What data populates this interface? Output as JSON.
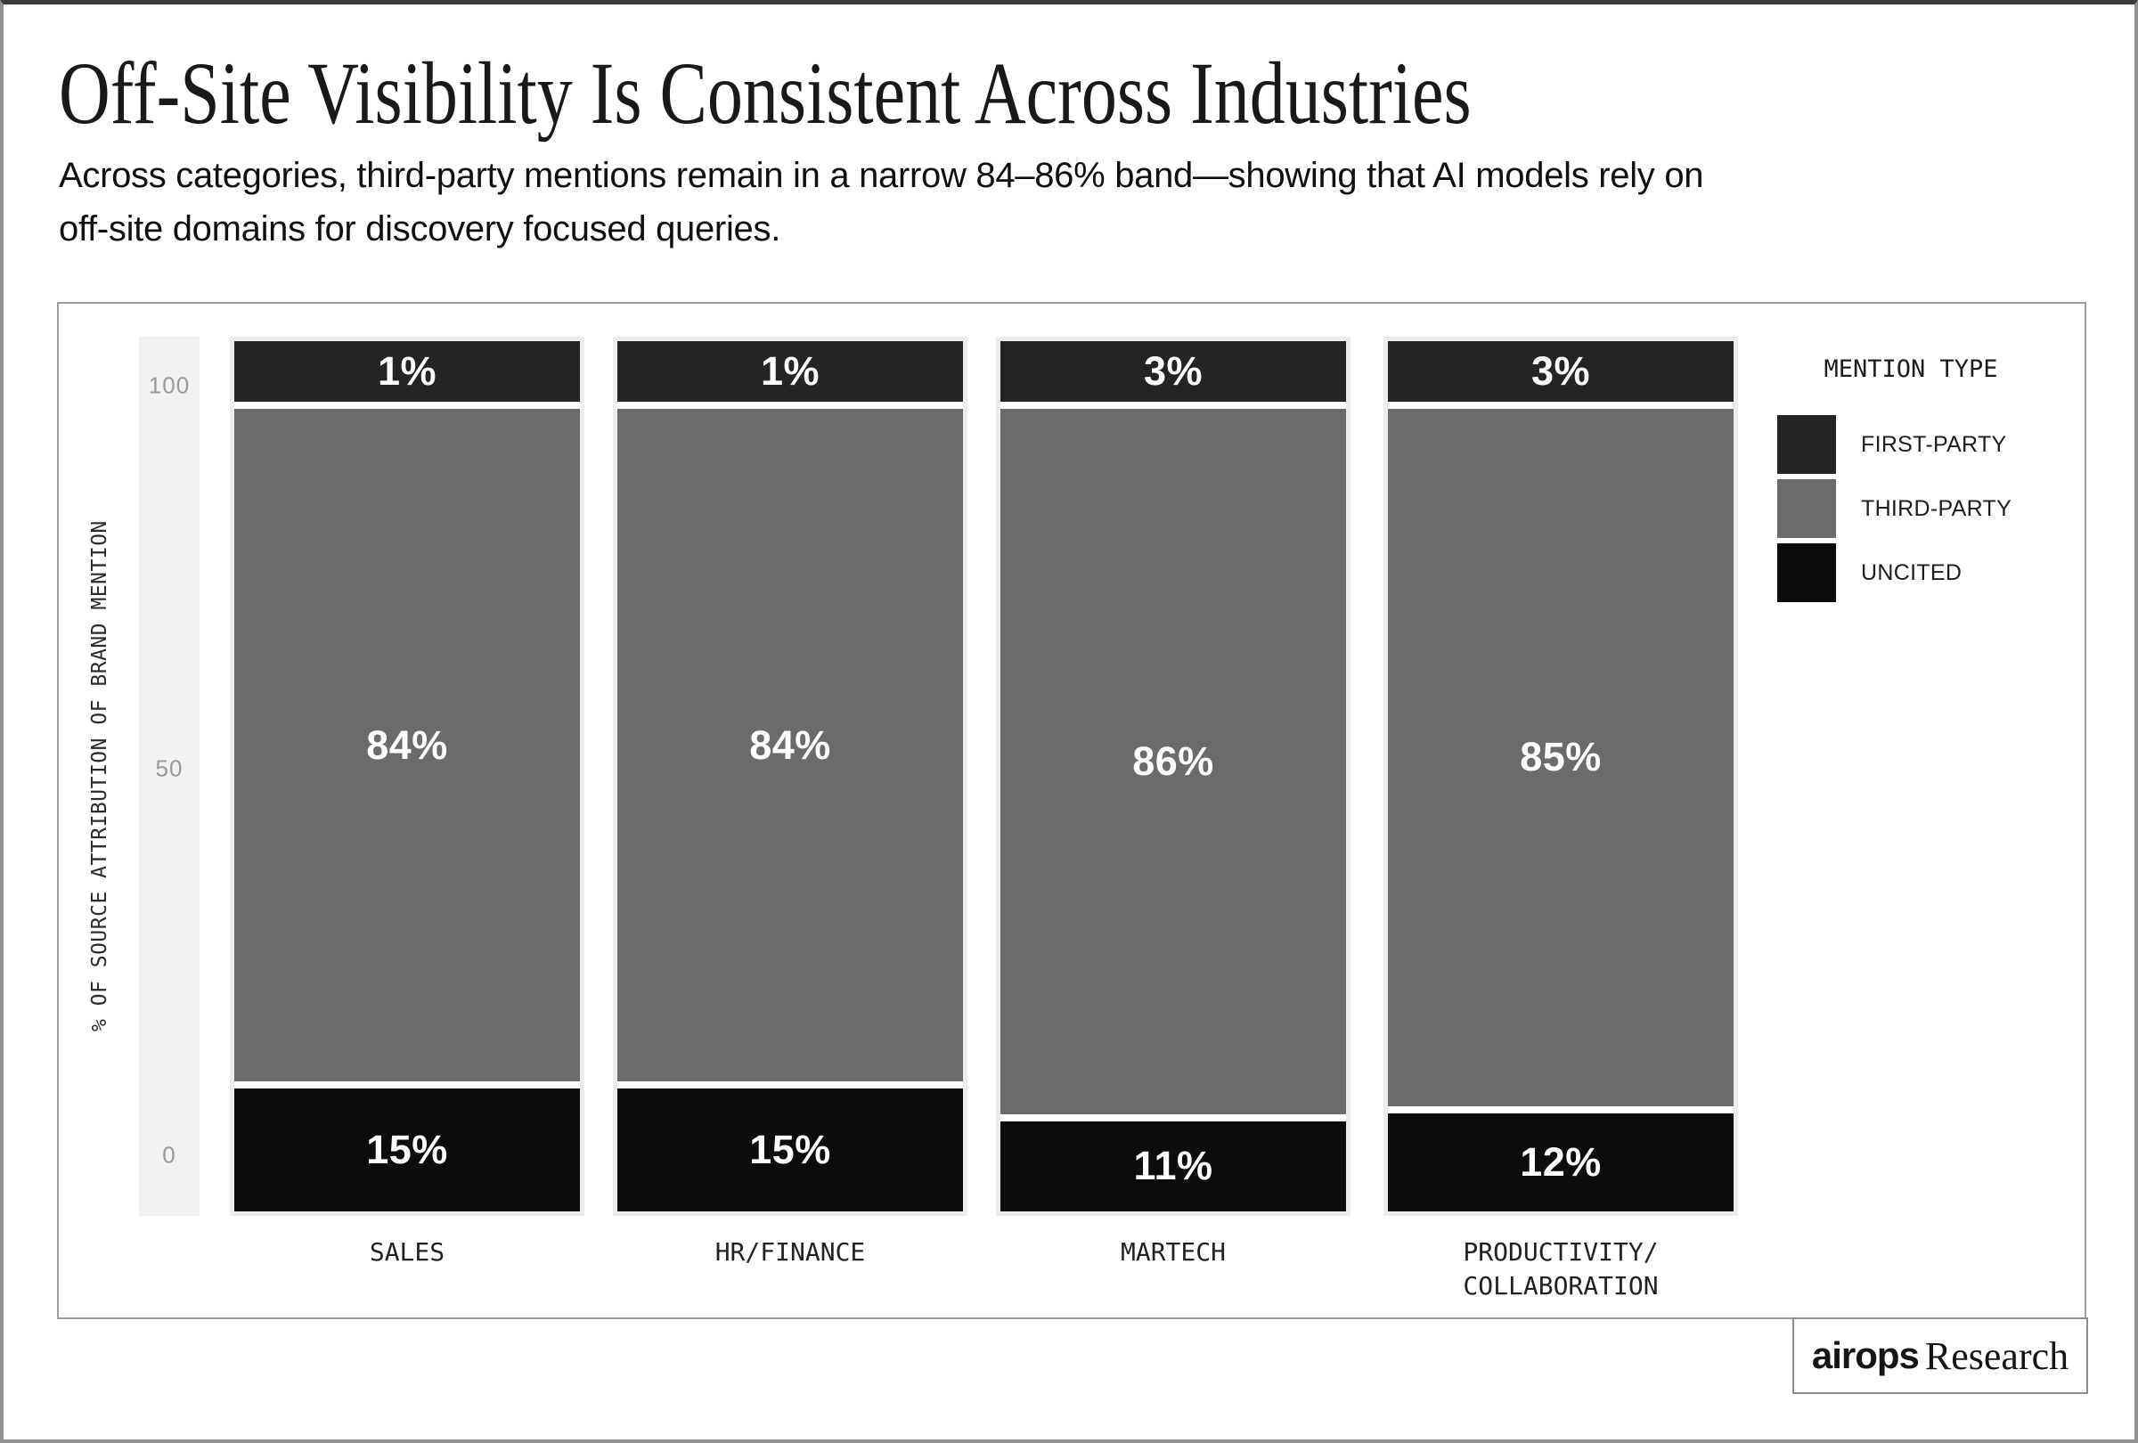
{
  "header": {
    "title": "Off-Site Visibility Is Consistent Across Industries",
    "subtitle": "Across categories, third-party mentions remain in a narrow 84–86% band—showing that AI models rely on\noff-site domains for discovery focused queries."
  },
  "chart_data": {
    "type": "bar",
    "stacked": true,
    "categories": [
      "SALES",
      "HR/FINANCE",
      "MARTECH",
      "PRODUCTIVITY/COLLABORATION"
    ],
    "series": [
      {
        "name": "FIRST-PARTY",
        "color": "#242424",
        "values": [
          1,
          1,
          3,
          3
        ]
      },
      {
        "name": "THIRD-PARTY",
        "color": "#6b6b6b",
        "values": [
          84,
          84,
          86,
          85
        ]
      },
      {
        "name": "UNCITED",
        "color": "#0c0c0c",
        "values": [
          15,
          15,
          11,
          12
        ]
      }
    ],
    "ylabel": "% OF SOURCE ATTRIBUTION OF BRAND MENTION",
    "yticks": [
      "100",
      "50",
      "0"
    ],
    "ylim": [
      0,
      100
    ],
    "value_suffix": "%",
    "legend_title": "MENTION TYPE",
    "legend_position": "right",
    "grid": false
  },
  "footer": {
    "brand_bold": "airops",
    "brand_serif": "Research"
  }
}
